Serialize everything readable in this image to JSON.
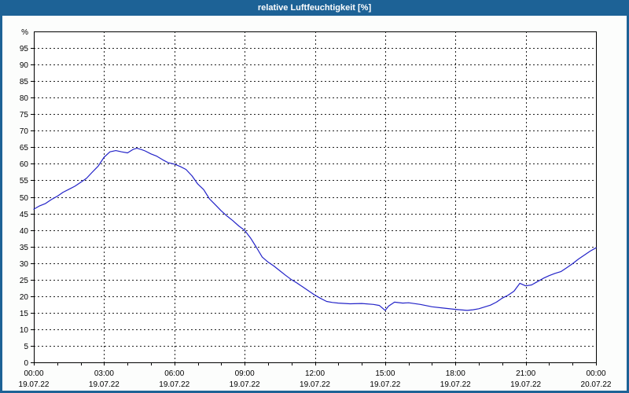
{
  "window": {
    "title": "relative Luftfeuchtigkeit [%]"
  },
  "colors": {
    "titlebar": "#1d6296",
    "window_frame": "#1d6296",
    "chart_background": "#fcfdfc",
    "plot_background": "#ffffff",
    "grid": "#222222",
    "axis": "#000000",
    "line": "#2323c8",
    "title_text": "#ffffff",
    "tick_text": "#000000"
  },
  "chart_data": {
    "type": "line",
    "title": "relative Luftfeuchtigkeit [%]",
    "y_unit_label": "%",
    "ylim": [
      0,
      100
    ],
    "ytick_values": [
      0,
      5,
      10,
      15,
      20,
      25,
      30,
      35,
      40,
      45,
      50,
      55,
      60,
      65,
      70,
      75,
      80,
      85,
      90,
      95
    ],
    "x_hours_range": [
      0,
      24
    ],
    "x_minor_tick_every_hours": 1,
    "x_major_gridline_hours": [
      3,
      6,
      9,
      12,
      15,
      18,
      21
    ],
    "x_ticks": [
      {
        "hour": 0,
        "time": "00:00",
        "date": "19.07.22"
      },
      {
        "hour": 3,
        "time": "03:00",
        "date": "19.07.22"
      },
      {
        "hour": 6,
        "time": "06:00",
        "date": "19.07.22"
      },
      {
        "hour": 9,
        "time": "09:00",
        "date": "19.07.22"
      },
      {
        "hour": 12,
        "time": "12:00",
        "date": "19.07.22"
      },
      {
        "hour": 15,
        "time": "15:00",
        "date": "19.07.22"
      },
      {
        "hour": 18,
        "time": "18:00",
        "date": "19.07.22"
      },
      {
        "hour": 21,
        "time": "21:00",
        "date": "19.07.22"
      },
      {
        "hour": 24,
        "time": "00:00",
        "date": "20.07.22"
      }
    ],
    "grid": "dashed",
    "legend": "none",
    "series": [
      {
        "name": "relative Luftfeuchtigkeit",
        "color": "#2323c8",
        "points": [
          [
            0,
            46.3
          ],
          [
            0.25,
            47.3
          ],
          [
            0.5,
            48.0
          ],
          [
            0.75,
            49.2
          ],
          [
            1,
            50.2
          ],
          [
            1.25,
            51.4
          ],
          [
            1.5,
            52.3
          ],
          [
            1.75,
            53.2
          ],
          [
            2,
            54.4
          ],
          [
            2.25,
            55.6
          ],
          [
            2.5,
            57.5
          ],
          [
            2.75,
            59.3
          ],
          [
            3,
            62.0
          ],
          [
            3.25,
            63.6
          ],
          [
            3.5,
            64.0
          ],
          [
            3.75,
            63.6
          ],
          [
            4,
            63.3
          ],
          [
            4.25,
            64.4
          ],
          [
            4.4,
            64.7
          ],
          [
            4.6,
            64.3
          ],
          [
            4.75,
            63.9
          ],
          [
            5,
            63.0
          ],
          [
            5.25,
            62.3
          ],
          [
            5.5,
            61.2
          ],
          [
            5.75,
            60.3
          ],
          [
            6,
            59.9
          ],
          [
            6.25,
            59.2
          ],
          [
            6.5,
            58.3
          ],
          [
            6.75,
            56.4
          ],
          [
            7,
            53.9
          ],
          [
            7.25,
            52.2
          ],
          [
            7.5,
            49.4
          ],
          [
            7.75,
            47.6
          ],
          [
            8,
            45.8
          ],
          [
            8.25,
            44.2
          ],
          [
            8.5,
            42.8
          ],
          [
            8.75,
            41.2
          ],
          [
            9,
            39.9
          ],
          [
            9.25,
            37.6
          ],
          [
            9.5,
            34.8
          ],
          [
            9.75,
            31.8
          ],
          [
            10,
            30.3
          ],
          [
            10.25,
            29.1
          ],
          [
            10.5,
            27.7
          ],
          [
            10.75,
            26.3
          ],
          [
            11,
            25.0
          ],
          [
            11.25,
            23.9
          ],
          [
            11.5,
            22.7
          ],
          [
            11.75,
            21.5
          ],
          [
            12,
            20.3
          ],
          [
            12.25,
            19.3
          ],
          [
            12.5,
            18.4
          ],
          [
            12.75,
            18.1
          ],
          [
            13,
            17.9
          ],
          [
            13.5,
            17.7
          ],
          [
            14,
            17.8
          ],
          [
            14.5,
            17.5
          ],
          [
            14.75,
            17.2
          ],
          [
            15,
            15.7
          ],
          [
            15.15,
            17.0
          ],
          [
            15.4,
            18.2
          ],
          [
            15.75,
            17.9
          ],
          [
            16,
            18.0
          ],
          [
            16.5,
            17.5
          ],
          [
            17,
            16.8
          ],
          [
            17.5,
            16.4
          ],
          [
            18,
            16.0
          ],
          [
            18.5,
            15.7
          ],
          [
            18.75,
            15.9
          ],
          [
            19,
            16.2
          ],
          [
            19.5,
            17.3
          ],
          [
            19.75,
            18.2
          ],
          [
            20,
            19.4
          ],
          [
            20.25,
            20.3
          ],
          [
            20.5,
            21.5
          ],
          [
            20.75,
            23.9
          ],
          [
            21,
            23.1
          ],
          [
            21.25,
            23.4
          ],
          [
            21.5,
            24.4
          ],
          [
            21.75,
            25.4
          ],
          [
            22,
            26.2
          ],
          [
            22.25,
            26.9
          ],
          [
            22.5,
            27.4
          ],
          [
            22.75,
            28.6
          ],
          [
            23,
            29.8
          ],
          [
            23.25,
            31.2
          ],
          [
            23.5,
            32.4
          ],
          [
            23.75,
            33.6
          ],
          [
            24,
            34.6
          ]
        ]
      }
    ]
  }
}
